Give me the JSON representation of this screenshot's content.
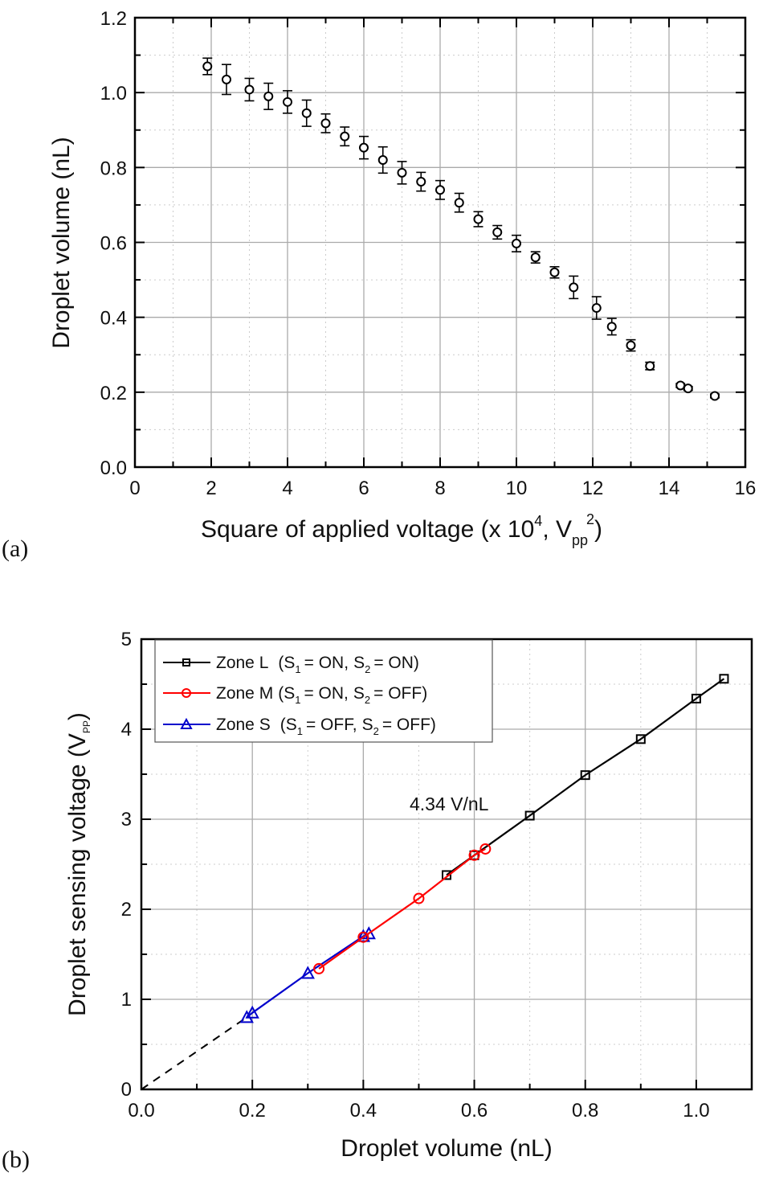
{
  "chart_data": [
    {
      "type": "scatter",
      "panel_label": "(a)",
      "xlabel": "Square of applied voltage (x 10",
      "xlabel_sup": "4",
      "xlabel_mid": ", V",
      "xlabel_sub": "pp",
      "xlabel_sup2": "2",
      "xlabel_end": ")",
      "ylabel": "Droplet volume (nL)",
      "xlim": [
        0,
        16
      ],
      "ylim": [
        0,
        1.2
      ],
      "xticks": [
        "0",
        "2",
        "4",
        "6",
        "8",
        "10",
        "12",
        "14",
        "16"
      ],
      "yticks": [
        "0.0",
        "0.2",
        "0.4",
        "0.6",
        "0.8",
        "1.0",
        "1.2"
      ],
      "grid": true,
      "series": [
        {
          "name": "droplet volume",
          "color": "#000000",
          "marker": "open-circle",
          "x": [
            1.9,
            2.4,
            3.0,
            3.5,
            4.0,
            4.5,
            5.0,
            5.5,
            6.0,
            6.5,
            7.0,
            7.5,
            8.0,
            8.5,
            9.0,
            9.5,
            10.0,
            10.5,
            11.0,
            11.5,
            12.1,
            12.5,
            13.0,
            13.5,
            14.3,
            14.5,
            15.2
          ],
          "y": [
            1.07,
            1.035,
            1.008,
            0.99,
            0.975,
            0.945,
            0.918,
            0.883,
            0.853,
            0.82,
            0.786,
            0.762,
            0.74,
            0.706,
            0.662,
            0.627,
            0.597,
            0.56,
            0.52,
            0.48,
            0.425,
            0.375,
            0.325,
            0.27,
            0.218,
            0.21,
            0.19
          ],
          "yerr": [
            0.022,
            0.04,
            0.03,
            0.035,
            0.03,
            0.035,
            0.025,
            0.025,
            0.03,
            0.035,
            0.03,
            0.025,
            0.025,
            0.025,
            0.02,
            0.018,
            0.022,
            0.015,
            0.015,
            0.03,
            0.03,
            0.022,
            0.015,
            0.01,
            0.005,
            0.005,
            0.005
          ]
        }
      ]
    },
    {
      "type": "line",
      "panel_label": "(b)",
      "xlabel": "Droplet volume (nL)",
      "ylabel": "Droplet sensing voltage (V",
      "ylabel_sub": "PP",
      "ylabel_end": ")",
      "xlim": [
        0,
        1.1
      ],
      "ylim": [
        0,
        5
      ],
      "xticks": [
        "0.0",
        "0.2",
        "0.4",
        "0.6",
        "0.8",
        "1.0"
      ],
      "yticks": [
        "0",
        "1",
        "2",
        "3",
        "4",
        "5"
      ],
      "grid": true,
      "legend_position": "top-left",
      "annotation": "4.34 V/nL",
      "fit_line": {
        "style": "dashed",
        "color": "#000000",
        "x": [
          0,
          0.19
        ],
        "y": [
          0,
          0.8
        ]
      },
      "series": [
        {
          "name": "Zone L",
          "legend": {
            "zone": "Zone L",
            "s1": "= ON,",
            "s2": "= ON)"
          },
          "color": "#000000",
          "marker": "square",
          "x": [
            0.55,
            0.6,
            0.7,
            0.8,
            0.9,
            1.0,
            1.05
          ],
          "y": [
            2.38,
            2.6,
            3.04,
            3.49,
            3.89,
            4.34,
            4.56
          ]
        },
        {
          "name": "Zone M",
          "legend": {
            "zone": "Zone M",
            "s1": "= ON,",
            "s2": "= OFF)"
          },
          "color": "#ff0000",
          "marker": "circle",
          "x": [
            0.32,
            0.4,
            0.5,
            0.6,
            0.62
          ],
          "y": [
            1.34,
            1.69,
            2.12,
            2.6,
            2.67
          ]
        },
        {
          "name": "Zone S",
          "legend": {
            "zone": "Zone S",
            "s1": "= OFF,",
            "s2": "= OFF)"
          },
          "color": "#0000cc",
          "marker": "triangle",
          "x": [
            0.19,
            0.2,
            0.3,
            0.4,
            0.41
          ],
          "y": [
            0.8,
            0.85,
            1.29,
            1.7,
            1.73
          ]
        }
      ]
    }
  ],
  "legend_common": {
    "open_paren": "(S",
    "sub1": "1",
    "sub2": "2",
    "s2_prefix": "S"
  }
}
